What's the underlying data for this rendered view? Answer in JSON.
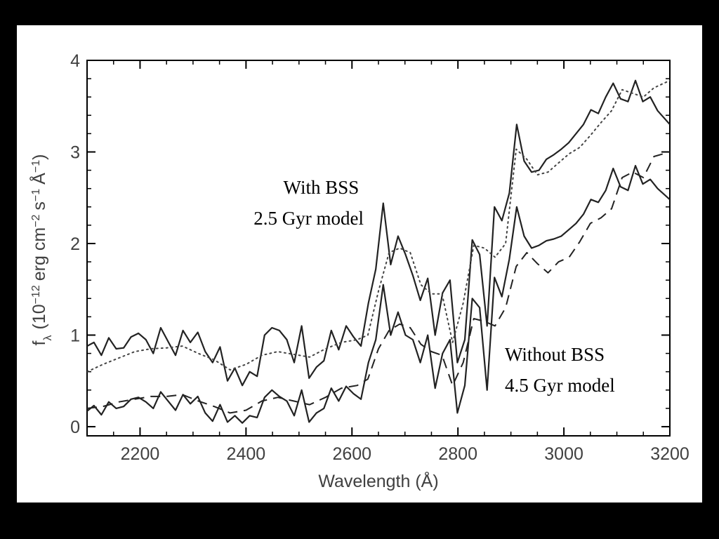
{
  "chart_data": {
    "type": "line",
    "xlabel": "Wavelength (Å)",
    "ylabel": {
      "prefix": "f",
      "prefix_sub": "λ",
      "open": "(10",
      "exp1": "−12",
      "unit1": "erg cm",
      "exp2": "−2",
      "unit2": "s",
      "exp3": "−1",
      "unit3": "Å",
      "exp4": "−1",
      "close": ")"
    },
    "xlim": [
      2100,
      3200
    ],
    "ylim": [
      -0.1,
      4.0
    ],
    "xticks": [
      2200,
      2400,
      2600,
      2800,
      3000,
      3200
    ],
    "yticks": [
      0,
      1,
      2,
      3,
      4
    ],
    "annotations": [
      {
        "id": "with-bss",
        "lines": [
          "With BSS",
          "2.5 Gyr model"
        ]
      },
      {
        "id": "without-bss",
        "lines": [
          "Without BSS",
          "4.5 Gyr model"
        ]
      }
    ],
    "series": [
      {
        "name": "With BSS observed",
        "style": "solid",
        "color": "#222222",
        "points": [
          [
            2100,
            0.88
          ],
          [
            2113,
            0.92
          ],
          [
            2127,
            0.78
          ],
          [
            2141,
            0.97
          ],
          [
            2155,
            0.85
          ],
          [
            2169,
            0.86
          ],
          [
            2183,
            0.98
          ],
          [
            2197,
            1.02
          ],
          [
            2211,
            0.95
          ],
          [
            2225,
            0.8
          ],
          [
            2239,
            1.08
          ],
          [
            2253,
            0.93
          ],
          [
            2267,
            0.78
          ],
          [
            2281,
            1.05
          ],
          [
            2295,
            0.92
          ],
          [
            2309,
            1.03
          ],
          [
            2323,
            0.82
          ],
          [
            2337,
            0.7
          ],
          [
            2351,
            0.87
          ],
          [
            2365,
            0.5
          ],
          [
            2379,
            0.64
          ],
          [
            2393,
            0.45
          ],
          [
            2407,
            0.6
          ],
          [
            2421,
            0.55
          ],
          [
            2435,
            1.0
          ],
          [
            2449,
            1.08
          ],
          [
            2463,
            1.05
          ],
          [
            2477,
            0.95
          ],
          [
            2491,
            0.7
          ],
          [
            2505,
            1.1
          ],
          [
            2519,
            0.53
          ],
          [
            2533,
            0.65
          ],
          [
            2547,
            0.72
          ],
          [
            2561,
            1.05
          ],
          [
            2575,
            0.84
          ],
          [
            2589,
            1.1
          ],
          [
            2603,
            0.98
          ],
          [
            2617,
            0.88
          ],
          [
            2631,
            1.35
          ],
          [
            2645,
            1.72
          ],
          [
            2659,
            2.44
          ],
          [
            2673,
            1.77
          ],
          [
            2687,
            2.08
          ],
          [
            2701,
            1.88
          ],
          [
            2715,
            1.65
          ],
          [
            2729,
            1.38
          ],
          [
            2743,
            1.62
          ],
          [
            2757,
            1.0
          ],
          [
            2771,
            1.46
          ],
          [
            2785,
            1.6
          ],
          [
            2799,
            0.7
          ],
          [
            2813,
            0.95
          ],
          [
            2827,
            2.04
          ],
          [
            2841,
            1.88
          ],
          [
            2855,
            1.1
          ],
          [
            2869,
            2.4
          ],
          [
            2883,
            2.25
          ],
          [
            2897,
            2.55
          ],
          [
            2911,
            3.3
          ],
          [
            2925,
            2.9
          ],
          [
            2939,
            2.78
          ],
          [
            2953,
            2.8
          ],
          [
            2967,
            2.92
          ],
          [
            2981,
            2.97
          ],
          [
            2995,
            3.03
          ],
          [
            3009,
            3.1
          ],
          [
            3023,
            3.2
          ],
          [
            3037,
            3.3
          ],
          [
            3051,
            3.46
          ],
          [
            3065,
            3.42
          ],
          [
            3079,
            3.6
          ],
          [
            3093,
            3.75
          ],
          [
            3107,
            3.58
          ],
          [
            3121,
            3.55
          ],
          [
            3135,
            3.78
          ],
          [
            3149,
            3.55
          ],
          [
            3163,
            3.6
          ],
          [
            3177,
            3.45
          ],
          [
            3200,
            3.3
          ]
        ]
      },
      {
        "name": "With BSS 2.5 Gyr model",
        "style": "dotted",
        "color": "#444444",
        "points": [
          [
            2100,
            0.6
          ],
          [
            2130,
            0.68
          ],
          [
            2160,
            0.75
          ],
          [
            2190,
            0.82
          ],
          [
            2220,
            0.85
          ],
          [
            2250,
            0.86
          ],
          [
            2280,
            0.88
          ],
          [
            2310,
            0.8
          ],
          [
            2340,
            0.73
          ],
          [
            2370,
            0.62
          ],
          [
            2400,
            0.68
          ],
          [
            2430,
            0.78
          ],
          [
            2460,
            0.82
          ],
          [
            2490,
            0.79
          ],
          [
            2520,
            0.76
          ],
          [
            2550,
            0.85
          ],
          [
            2580,
            0.92
          ],
          [
            2610,
            0.95
          ],
          [
            2630,
            1.0
          ],
          [
            2650,
            1.48
          ],
          [
            2670,
            1.9
          ],
          [
            2690,
            1.95
          ],
          [
            2710,
            1.9
          ],
          [
            2730,
            1.55
          ],
          [
            2750,
            1.45
          ],
          [
            2770,
            1.45
          ],
          [
            2790,
            0.92
          ],
          [
            2810,
            1.35
          ],
          [
            2830,
            1.98
          ],
          [
            2850,
            1.95
          ],
          [
            2870,
            1.85
          ],
          [
            2890,
            2.0
          ],
          [
            2910,
            3.03
          ],
          [
            2930,
            2.92
          ],
          [
            2950,
            2.75
          ],
          [
            2970,
            2.78
          ],
          [
            2990,
            2.88
          ],
          [
            3010,
            2.98
          ],
          [
            3030,
            3.05
          ],
          [
            3050,
            3.18
          ],
          [
            3070,
            3.32
          ],
          [
            3090,
            3.45
          ],
          [
            3110,
            3.68
          ],
          [
            3130,
            3.64
          ],
          [
            3150,
            3.6
          ],
          [
            3170,
            3.7
          ],
          [
            3200,
            3.78
          ]
        ]
      },
      {
        "name": "Without BSS observed",
        "style": "solid",
        "color": "#222222",
        "points": [
          [
            2100,
            0.17
          ],
          [
            2113,
            0.23
          ],
          [
            2127,
            0.13
          ],
          [
            2141,
            0.27
          ],
          [
            2155,
            0.2
          ],
          [
            2169,
            0.22
          ],
          [
            2183,
            0.3
          ],
          [
            2197,
            0.32
          ],
          [
            2211,
            0.27
          ],
          [
            2225,
            0.2
          ],
          [
            2239,
            0.38
          ],
          [
            2253,
            0.28
          ],
          [
            2267,
            0.18
          ],
          [
            2281,
            0.35
          ],
          [
            2295,
            0.25
          ],
          [
            2309,
            0.33
          ],
          [
            2323,
            0.15
          ],
          [
            2337,
            0.06
          ],
          [
            2351,
            0.24
          ],
          [
            2365,
            0.05
          ],
          [
            2379,
            0.12
          ],
          [
            2393,
            0.04
          ],
          [
            2407,
            0.12
          ],
          [
            2421,
            0.1
          ],
          [
            2435,
            0.32
          ],
          [
            2449,
            0.4
          ],
          [
            2463,
            0.33
          ],
          [
            2477,
            0.28
          ],
          [
            2491,
            0.12
          ],
          [
            2505,
            0.4
          ],
          [
            2519,
            0.05
          ],
          [
            2533,
            0.15
          ],
          [
            2547,
            0.2
          ],
          [
            2561,
            0.42
          ],
          [
            2575,
            0.28
          ],
          [
            2589,
            0.44
          ],
          [
            2603,
            0.36
          ],
          [
            2617,
            0.3
          ],
          [
            2631,
            0.7
          ],
          [
            2645,
            0.95
          ],
          [
            2659,
            1.55
          ],
          [
            2673,
            1.0
          ],
          [
            2687,
            1.25
          ],
          [
            2701,
            1.0
          ],
          [
            2715,
            0.95
          ],
          [
            2729,
            0.7
          ],
          [
            2743,
            1.0
          ],
          [
            2757,
            0.42
          ],
          [
            2771,
            0.8
          ],
          [
            2785,
            0.95
          ],
          [
            2799,
            0.15
          ],
          [
            2813,
            0.45
          ],
          [
            2827,
            1.4
          ],
          [
            2841,
            1.3
          ],
          [
            2855,
            0.4
          ],
          [
            2869,
            1.63
          ],
          [
            2883,
            1.42
          ],
          [
            2897,
            1.83
          ],
          [
            2911,
            2.4
          ],
          [
            2925,
            2.08
          ],
          [
            2939,
            1.95
          ],
          [
            2953,
            1.98
          ],
          [
            2967,
            2.03
          ],
          [
            2981,
            2.05
          ],
          [
            2995,
            2.08
          ],
          [
            3009,
            2.15
          ],
          [
            3023,
            2.22
          ],
          [
            3037,
            2.32
          ],
          [
            3051,
            2.48
          ],
          [
            3065,
            2.45
          ],
          [
            3079,
            2.58
          ],
          [
            3093,
            2.82
          ],
          [
            3107,
            2.62
          ],
          [
            3121,
            2.58
          ],
          [
            3135,
            2.85
          ],
          [
            3149,
            2.65
          ],
          [
            3163,
            2.7
          ],
          [
            3177,
            2.6
          ],
          [
            3200,
            2.48
          ]
        ]
      },
      {
        "name": "Without BSS 4.5 Gyr model",
        "style": "dashed",
        "color": "#222222",
        "points": [
          [
            2100,
            0.2
          ],
          [
            2130,
            0.22
          ],
          [
            2160,
            0.27
          ],
          [
            2190,
            0.3
          ],
          [
            2220,
            0.33
          ],
          [
            2250,
            0.33
          ],
          [
            2280,
            0.35
          ],
          [
            2310,
            0.28
          ],
          [
            2340,
            0.22
          ],
          [
            2370,
            0.15
          ],
          [
            2400,
            0.18
          ],
          [
            2430,
            0.28
          ],
          [
            2460,
            0.32
          ],
          [
            2490,
            0.28
          ],
          [
            2520,
            0.24
          ],
          [
            2550,
            0.32
          ],
          [
            2580,
            0.42
          ],
          [
            2610,
            0.45
          ],
          [
            2630,
            0.52
          ],
          [
            2650,
            0.85
          ],
          [
            2670,
            1.05
          ],
          [
            2690,
            1.12
          ],
          [
            2710,
            1.08
          ],
          [
            2730,
            0.9
          ],
          [
            2750,
            0.82
          ],
          [
            2770,
            0.78
          ],
          [
            2790,
            0.45
          ],
          [
            2810,
            0.7
          ],
          [
            2830,
            1.18
          ],
          [
            2850,
            1.15
          ],
          [
            2870,
            1.1
          ],
          [
            2890,
            1.3
          ],
          [
            2910,
            1.75
          ],
          [
            2930,
            1.9
          ],
          [
            2950,
            1.78
          ],
          [
            2970,
            1.68
          ],
          [
            2990,
            1.8
          ],
          [
            3010,
            1.85
          ],
          [
            3030,
            2.02
          ],
          [
            3050,
            2.22
          ],
          [
            3070,
            2.28
          ],
          [
            3090,
            2.38
          ],
          [
            3110,
            2.72
          ],
          [
            3130,
            2.78
          ],
          [
            3150,
            2.72
          ],
          [
            3170,
            2.95
          ],
          [
            3200,
            3.0
          ]
        ]
      }
    ]
  }
}
